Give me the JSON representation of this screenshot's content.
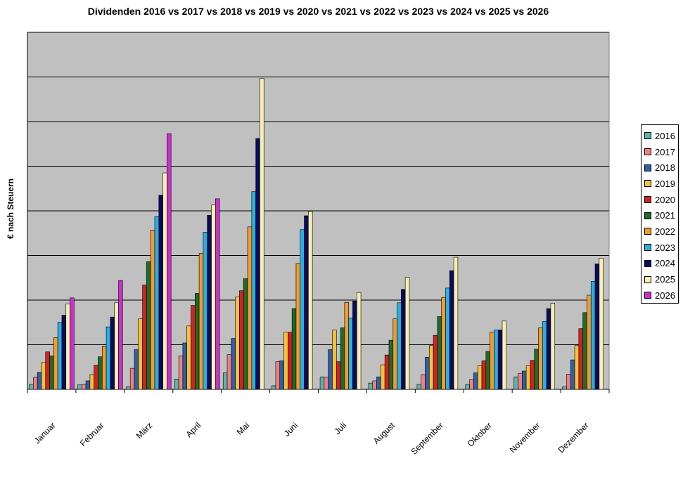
{
  "chart_data": {
    "type": "bar",
    "title": "Dividenden 2016 vs 2017 vs 2018 vs 2019 vs 2020 vs 2021 vs 2022 vs 2023 vs 2024 vs 2025 vs 2026",
    "xlabel": "",
    "ylabel": "€ nach Steuern",
    "ylim": [
      0,
      8
    ],
    "grid": true,
    "legend_position": "right",
    "categories": [
      "Januar",
      "Februar",
      "März",
      "April",
      "Mai",
      "Juni",
      "Juli",
      "August",
      "September",
      "Oktober",
      "November",
      "Dezember"
    ],
    "series": [
      {
        "name": "2016",
        "color": "#5fb3a8",
        "values": [
          0.11,
          0.1,
          0.06,
          0.23,
          0.37,
          0.08,
          0.28,
          0.14,
          0.11,
          0.11,
          0.28,
          0.06
        ]
      },
      {
        "name": "2017",
        "color": "#f08080",
        "values": [
          0.27,
          0.11,
          0.47,
          0.75,
          0.78,
          0.62,
          0.27,
          0.19,
          0.33,
          0.22,
          0.36,
          0.34
        ]
      },
      {
        "name": "2018",
        "color": "#2e5fa8",
        "values": [
          0.38,
          0.19,
          0.89,
          1.04,
          1.14,
          0.64,
          0.89,
          0.28,
          0.72,
          0.37,
          0.41,
          0.66
        ]
      },
      {
        "name": "2019",
        "color": "#f2c23c",
        "values": [
          0.6,
          0.33,
          1.58,
          1.42,
          2.07,
          1.28,
          1.33,
          0.55,
          0.98,
          0.53,
          0.53,
          0.98
        ]
      },
      {
        "name": "2020",
        "color": "#d32020",
        "values": [
          0.84,
          0.54,
          2.34,
          1.88,
          2.21,
          1.28,
          0.62,
          0.77,
          1.21,
          0.64,
          0.65,
          1.36
        ]
      },
      {
        "name": "2021",
        "color": "#1f6b2a",
        "values": [
          0.75,
          0.73,
          2.86,
          2.15,
          2.48,
          1.81,
          1.38,
          1.1,
          1.63,
          0.85,
          0.9,
          1.72
        ]
      },
      {
        "name": "2022",
        "color": "#f29a2e",
        "values": [
          1.16,
          0.97,
          3.57,
          3.05,
          3.64,
          2.82,
          1.95,
          1.58,
          2.06,
          1.28,
          1.38,
          2.11
        ]
      },
      {
        "name": "2023",
        "color": "#2ab0e0",
        "values": [
          1.5,
          1.4,
          3.87,
          3.52,
          4.43,
          3.58,
          1.6,
          1.94,
          2.27,
          1.33,
          1.52,
          2.42
        ]
      },
      {
        "name": "2024",
        "color": "#0a0a5e",
        "values": [
          1.66,
          1.62,
          4.35,
          3.9,
          5.62,
          3.89,
          1.98,
          2.24,
          2.66,
          1.33,
          1.81,
          2.81
        ]
      },
      {
        "name": "2025",
        "color": "#f5f0b0",
        "values": [
          1.91,
          1.94,
          4.85,
          4.13,
          6.97,
          3.99,
          2.17,
          2.51,
          2.96,
          1.53,
          1.93,
          2.94
        ]
      },
      {
        "name": "2026",
        "color": "#cc2ecc",
        "values": [
          2.05,
          2.44,
          5.73,
          4.27,
          null,
          null,
          null,
          null,
          null,
          null,
          null,
          null
        ]
      }
    ]
  }
}
